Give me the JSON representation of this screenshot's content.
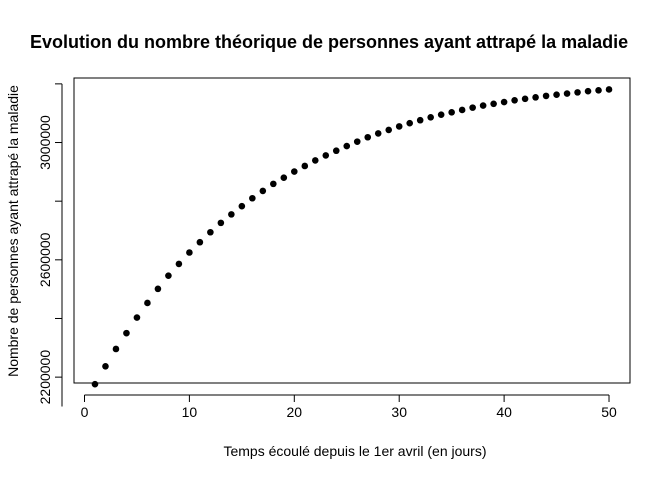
{
  "chart_data": {
    "type": "scatter",
    "title": "Evolution du nombre théorique de personnes ayant attrapé la maladie",
    "xlabel": "Temps écoulé depuis le 1er avril (en jours)",
    "ylabel": "Nombre de personnes ayant attrapé la maladie",
    "xlim": [
      -1,
      52
    ],
    "ylim": [
      2180000,
      3220000
    ],
    "xticks": [
      0,
      10,
      20,
      30,
      40,
      50
    ],
    "yticks": [
      2200000,
      2600000,
      3000000
    ],
    "ytick_labels": [
      "2200000",
      "2600000",
      "3000000"
    ],
    "point_style": "filled circle",
    "point_color": "#000000",
    "grid": false,
    "x": [
      1,
      2,
      3,
      4,
      5,
      6,
      7,
      8,
      9,
      10,
      11,
      12,
      13,
      14,
      15,
      16,
      17,
      18,
      19,
      20,
      21,
      22,
      23,
      24,
      25,
      26,
      27,
      28,
      29,
      30,
      31,
      32,
      33,
      34,
      35,
      36,
      37,
      38,
      39,
      40,
      41,
      42,
      43,
      44,
      45,
      46,
      47,
      48,
      49,
      50
    ],
    "y": [
      2176000,
      2237000,
      2296000,
      2350000,
      2403000,
      2453000,
      2501000,
      2546000,
      2586000,
      2625000,
      2660000,
      2694000,
      2726000,
      2755000,
      2783000,
      2810000,
      2835000,
      2859000,
      2880000,
      2901000,
      2920000,
      2939000,
      2956000,
      2972000,
      2988000,
      3003000,
      3018000,
      3031000,
      3043000,
      3055000,
      3066000,
      3076000,
      3086000,
      3095000,
      3103000,
      3111000,
      3119000,
      3126000,
      3132000,
      3138000,
      3144000,
      3149000,
      3154000,
      3159000,
      3163000,
      3167000,
      3171000,
      3175000,
      3178000,
      3181000
    ]
  }
}
